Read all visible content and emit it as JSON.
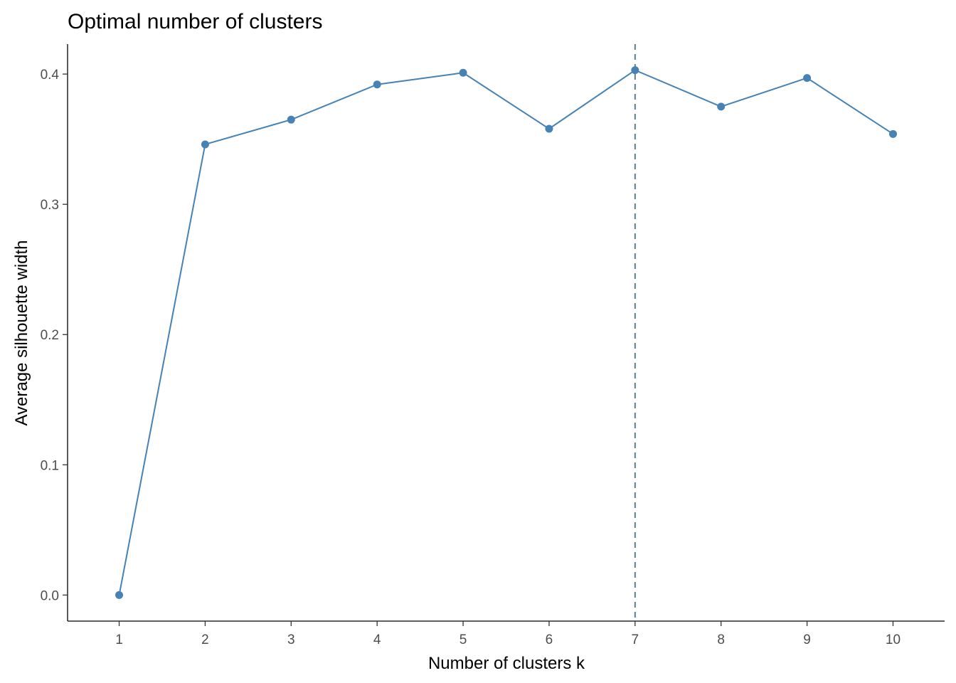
{
  "chart_data": {
    "type": "line",
    "title": "Optimal number of clusters",
    "xlabel": "Number of clusters k",
    "ylabel": "Average silhouette width",
    "x": [
      1,
      2,
      3,
      4,
      5,
      6,
      7,
      8,
      9,
      10
    ],
    "x_tick_labels": [
      "1",
      "2",
      "3",
      "4",
      "5",
      "6",
      "7",
      "8",
      "9",
      "10"
    ],
    "y_ticks": [
      0.0,
      0.1,
      0.2,
      0.3,
      0.4
    ],
    "y_tick_labels": [
      "0.0",
      "0.1",
      "0.2",
      "0.3",
      "0.4"
    ],
    "series": [
      {
        "values": [
          0.0,
          0.346,
          0.365,
          0.392,
          0.401,
          0.358,
          0.403,
          0.375,
          0.397,
          0.354
        ],
        "color": "#4682B4",
        "markers": true
      }
    ],
    "vline": {
      "x": 7,
      "style": "dashed",
      "color": "#4682B4"
    },
    "xlim": [
      0.4,
      10.6
    ],
    "ylim": [
      -0.02,
      0.423
    ],
    "grid": false,
    "legend": "none"
  }
}
